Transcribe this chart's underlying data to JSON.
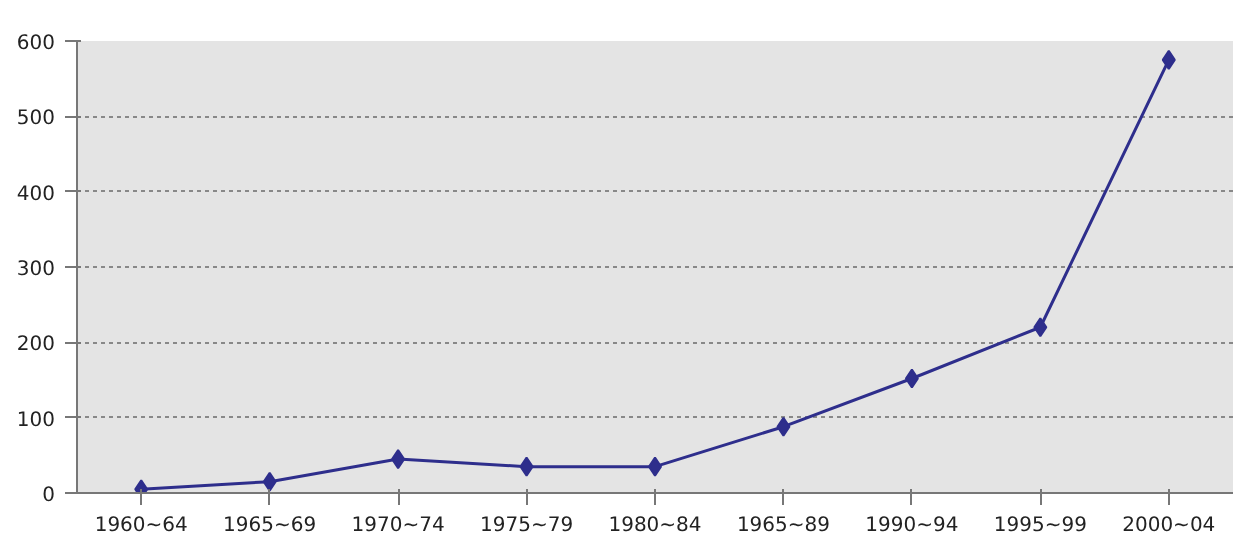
{
  "chart_data": {
    "type": "line",
    "categories": [
      "1960~64",
      "1965~69",
      "1970~74",
      "1975~79",
      "1980~84",
      "1965~89",
      "1990~94",
      "1995~99",
      "2000~04"
    ],
    "series": [
      {
        "color": "#2e2e8c",
        "values": [
          5,
          15,
          45,
          35,
          35,
          88,
          152,
          220,
          575
        ]
      }
    ],
    "ylim": [
      0,
      600
    ],
    "yticks": [
      0,
      100,
      200,
      300,
      400,
      500,
      600
    ],
    "grid": "y",
    "marker": "diamond",
    "line_style": "solid"
  }
}
